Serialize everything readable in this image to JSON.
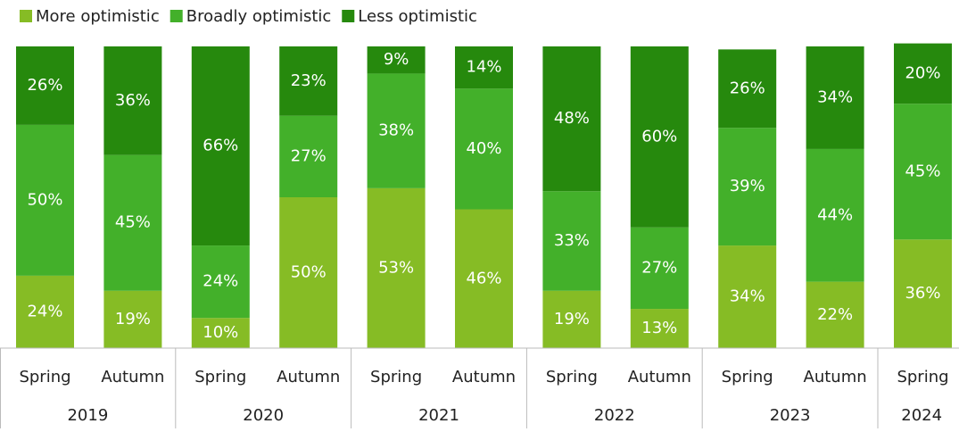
{
  "chart_data": {
    "type": "stacked_bar",
    "groups": [
      {
        "label": "2019",
        "categories": [
          "Spring",
          "Autumn"
        ]
      },
      {
        "label": "2020",
        "categories": [
          "Spring",
          "Autumn"
        ]
      },
      {
        "label": "2021",
        "categories": [
          "Spring",
          "Autumn"
        ]
      },
      {
        "label": "2022",
        "categories": [
          "Spring",
          "Autumn"
        ]
      },
      {
        "label": "2023",
        "categories": [
          "Spring",
          "Autumn"
        ]
      },
      {
        "label": "2024",
        "categories": [
          "Spring"
        ]
      }
    ],
    "series": [
      {
        "name": "More optimistic",
        "color": "#86bc25",
        "values": [
          24,
          19,
          10,
          50,
          53,
          46,
          19,
          13,
          34,
          22,
          36
        ],
        "value_labels": [
          "24%",
          "19%",
          "10%",
          "50%",
          "53%",
          "46%",
          "19%",
          "13%",
          "34%",
          "22%",
          "36%"
        ]
      },
      {
        "name": "Broadly optimistic",
        "color": "#43b02a",
        "values": [
          50,
          45,
          24,
          27,
          38,
          40,
          33,
          27,
          39,
          44,
          45
        ],
        "value_labels": [
          "50%",
          "45%",
          "24%",
          "27%",
          "38%",
          "40%",
          "33%",
          "27%",
          "39%",
          "44%",
          "45%"
        ]
      },
      {
        "name": "Less optimistic",
        "color": "#26890d",
        "values": [
          26,
          36,
          66,
          23,
          9,
          14,
          48,
          60,
          26,
          34,
          20
        ],
        "value_labels": [
          "26%",
          "36%",
          "66%",
          "23%",
          "9%",
          "14%",
          "48%",
          "60%",
          "26%",
          "34%",
          "20%"
        ]
      }
    ],
    "ylim": [
      0,
      100
    ]
  }
}
